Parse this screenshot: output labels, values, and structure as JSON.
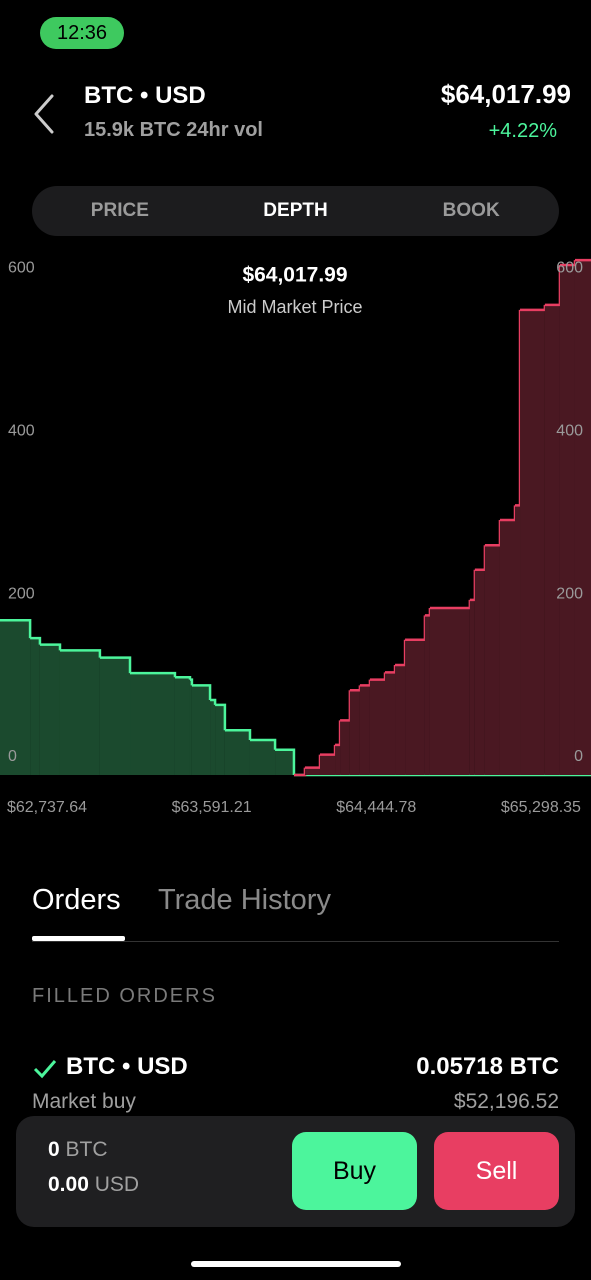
{
  "status": {
    "time": "12:36"
  },
  "header": {
    "pair": "BTC • USD",
    "volume": "15.9k BTC 24hr vol",
    "price": "$64,017.99",
    "change": "+4.22%"
  },
  "tabs": [
    "PRICE",
    "DEPTH",
    "BOOK"
  ],
  "chart_data": {
    "type": "depth",
    "title": "$64,017.99",
    "subtitle": "Mid Market Price",
    "xlim": [
      62494,
      65558
    ],
    "ylim": [
      0,
      640
    ],
    "xticks": [
      {
        "value": 62737.64,
        "label": "$62,737.64"
      },
      {
        "value": 63591.21,
        "label": "$63,591.21"
      },
      {
        "value": 64444.78,
        "label": "$64,444.78"
      },
      {
        "value": 65298.35,
        "label": "$65,298.35"
      }
    ],
    "yticks": [
      0,
      200,
      400,
      600
    ],
    "series": [
      {
        "name": "Bids",
        "color": "#4cf59c",
        "fill": "#1b4a2e",
        "x": [
          62494,
          62650,
          62701,
          62805,
          63012,
          63168,
          63401,
          63479,
          63489,
          63583,
          63609,
          63660,
          63790,
          63920,
          64018
        ],
        "values": [
          190,
          168,
          160,
          153,
          144,
          125,
          120,
          117,
          110,
          92,
          86,
          55,
          43,
          31,
          0
        ]
      },
      {
        "name": "Asks",
        "color": "#e83e62",
        "fill": "#4a1822",
        "x": [
          64018,
          64075,
          64153,
          64231,
          64257,
          64308,
          64360,
          64412,
          64490,
          64542,
          64594,
          64697,
          64723,
          64930,
          64956,
          65008,
          65086,
          65164,
          65190,
          65319,
          65397,
          65475
        ],
        "values": [
          0,
          9,
          25,
          37,
          67,
          104,
          110,
          117,
          126,
          135,
          166,
          196,
          205,
          215,
          252,
          282,
          313,
          331,
          571,
          577,
          626,
          632
        ]
      }
    ]
  },
  "orders": {
    "tabs": [
      "Orders",
      "Trade History"
    ],
    "section": "FILLED ORDERS",
    "rows": [
      {
        "pair": "BTC • USD",
        "amount": "0.05718 BTC",
        "type": "Market buy",
        "total": "$52,196.52"
      }
    ]
  },
  "balance": {
    "btc": "0",
    "btc_unit": "BTC",
    "usd": "0.00",
    "usd_unit": "USD"
  },
  "actions": {
    "buy": "Buy",
    "sell": "Sell"
  }
}
